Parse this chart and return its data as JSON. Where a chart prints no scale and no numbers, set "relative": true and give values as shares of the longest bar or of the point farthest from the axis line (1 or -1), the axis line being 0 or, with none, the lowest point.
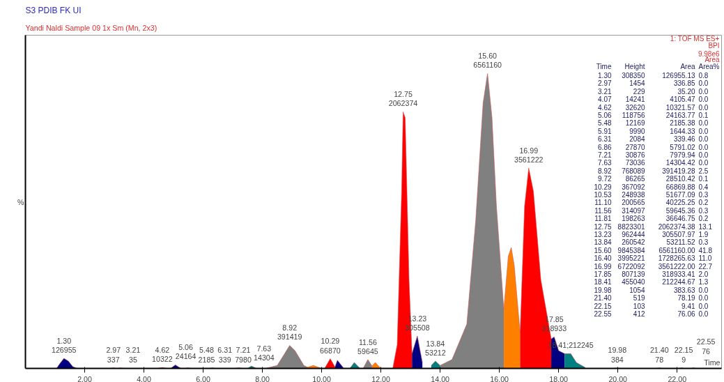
{
  "chart_data": {
    "type": "area",
    "title": "S3 PDIB FK UI",
    "subtitle": "Yandi Naldi Sample 09 1x Sm (Mn, 2x3)",
    "xlabel": "Time",
    "ylabel": "%",
    "relative": true,
    "grid": false,
    "xlim": [
      0,
      23.5
    ],
    "xticks": [
      {
        "value": 2,
        "label": "2.00"
      },
      {
        "value": 4,
        "label": "4.00"
      },
      {
        "value": 6,
        "label": "6.00"
      },
      {
        "value": 8,
        "label": "8.00"
      },
      {
        "value": 10,
        "label": "10.00"
      },
      {
        "value": 12,
        "label": "12.00"
      },
      {
        "value": 14,
        "label": "14.00"
      },
      {
        "value": 16,
        "label": "16.00"
      },
      {
        "value": 18,
        "label": "18.00"
      },
      {
        "value": 20,
        "label": "20.00"
      },
      {
        "value": 22,
        "label": "22.00"
      }
    ],
    "series": [
      {
        "color": "#000080",
        "x": [
          1.05,
          1.15,
          1.3,
          1.45,
          1.6,
          1.75
        ],
        "values": [
          0,
          0.015,
          0.034,
          0.025,
          0.006,
          0
        ]
      },
      {
        "color": "#000080",
        "x": [
          4.9,
          5.06,
          5.25
        ],
        "values": [
          0,
          0.012,
          0
        ]
      },
      {
        "color": "#008080",
        "x": [
          7.5,
          7.63,
          7.8
        ],
        "values": [
          0,
          0.008,
          0
        ]
      },
      {
        "color": "#808080",
        "x": [
          8.1,
          8.5,
          8.75,
          8.92,
          9.1,
          9.4,
          9.6
        ],
        "values": [
          0,
          0.01,
          0.05,
          0.078,
          0.06,
          0.01,
          0
        ]
      },
      {
        "color": "#ff8000",
        "x": [
          9.4,
          9.72,
          10.0
        ],
        "values": [
          0,
          0.01,
          0
        ]
      },
      {
        "color": "#ff0000",
        "x": [
          10.1,
          10.29,
          10.45
        ],
        "values": [
          0,
          0.033,
          0.005
        ]
      },
      {
        "color": "#000080",
        "x": [
          10.45,
          10.53,
          10.75
        ],
        "values": [
          0.005,
          0.028,
          0
        ]
      },
      {
        "color": "#008080",
        "x": [
          10.95,
          11.1,
          11.3
        ],
        "values": [
          0,
          0.02,
          0
        ]
      },
      {
        "color": "#808080",
        "x": [
          11.4,
          11.56,
          11.7
        ],
        "values": [
          0,
          0.03,
          0.008
        ]
      },
      {
        "color": "#ff8000",
        "x": [
          11.7,
          11.81,
          12.0
        ],
        "values": [
          0.008,
          0.02,
          0
        ]
      },
      {
        "color": "#ff0000",
        "x": [
          12.4,
          12.55,
          12.7,
          12.75,
          12.82,
          12.95,
          13.05
        ],
        "values": [
          0,
          0.08,
          0.6,
          0.87,
          0.85,
          0.3,
          0.05
        ]
      },
      {
        "color": "#000080",
        "x": [
          13.05,
          13.23,
          13.4
        ],
        "values": [
          0.05,
          0.11,
          0.02
        ]
      },
      {
        "color": "#008080",
        "x": [
          13.7,
          13.84,
          14.0
        ],
        "values": [
          0.01,
          0.025,
          0.01
        ]
      },
      {
        "color": "#808080",
        "x": [
          14.0,
          14.4,
          14.9,
          15.2,
          15.45,
          15.6,
          15.75,
          15.9,
          16.15
        ],
        "values": [
          0.01,
          0.03,
          0.15,
          0.5,
          0.9,
          1.0,
          0.85,
          0.55,
          0.2
        ]
      },
      {
        "color": "#ff8000",
        "x": [
          16.15,
          16.3,
          16.4,
          16.5,
          16.7
        ],
        "values": [
          0.2,
          0.38,
          0.41,
          0.35,
          0.12
        ]
      },
      {
        "color": "#ff0000",
        "x": [
          16.7,
          16.85,
          16.99,
          17.15,
          17.4,
          17.75
        ],
        "values": [
          0.12,
          0.55,
          0.68,
          0.6,
          0.3,
          0.1
        ]
      },
      {
        "color": "#000080",
        "x": [
          17.75,
          17.85,
          18.0,
          18.2
        ],
        "values": [
          0.1,
          0.107,
          0.06,
          0.05
        ]
      },
      {
        "color": "#008080",
        "x": [
          18.2,
          18.41,
          18.6,
          18.9
        ],
        "values": [
          0.05,
          0.05,
          0.02,
          0.003
        ]
      },
      {
        "color": "#008080",
        "x": [
          2.85,
          2.97,
          3.09
        ],
        "values": [
          0,
          0.002,
          0
        ]
      },
      {
        "color": "#808080",
        "x": [
          3.1,
          3.21,
          3.33
        ],
        "values": [
          0,
          0.002,
          0
        ]
      },
      {
        "color": "#ff0000",
        "x": [
          4.45,
          4.62,
          4.8
        ],
        "values": [
          0,
          0.003,
          0
        ]
      },
      {
        "color": "#008080",
        "x": [
          5.36,
          5.48,
          5.6
        ],
        "values": [
          0,
          0.002,
          0
        ]
      },
      {
        "color": "#ff8000",
        "x": [
          6.2,
          6.31,
          6.42
        ],
        "values": [
          0,
          0.002,
          0
        ]
      },
      {
        "color": "#000080",
        "x": [
          7.05,
          7.21,
          7.35
        ],
        "values": [
          0,
          0.002,
          0
        ]
      },
      {
        "color": "#808080",
        "x": [
          19.85,
          19.98,
          20.1
        ],
        "values": [
          0,
          0.002,
          0
        ]
      },
      {
        "color": "#ff8000",
        "x": [
          21.3,
          21.4,
          21.5
        ],
        "values": [
          0,
          0.002,
          0
        ]
      },
      {
        "color": "#ff0000",
        "x": [
          22.05,
          22.15,
          22.25
        ],
        "values": [
          0,
          0.002,
          0
        ]
      },
      {
        "color": "#000080",
        "x": [
          22.45,
          22.55,
          22.65
        ],
        "values": [
          0,
          0.002,
          0
        ]
      }
    ],
    "annotations": [
      {
        "text": "1.30\n126955",
        "x": 1.3,
        "y": 0.034
      },
      {
        "text": "2.97\n337",
        "x": 2.97,
        "y": 0.002
      },
      {
        "text": "3.21\n35",
        "x": 3.21,
        "y": 0.002
      },
      {
        "text": "4.62\n10322",
        "x": 4.62,
        "y": 0.003
      },
      {
        "text": "5.06\n24164",
        "x": 5.06,
        "y": 0.012
      },
      {
        "text": "5.48\n2185",
        "x": 5.48,
        "y": 0.002
      },
      {
        "text": "6.31\n339",
        "x": 6.31,
        "y": 0.002
      },
      {
        "text": "7.21\n7980",
        "x": 7.21,
        "y": 0.002
      },
      {
        "text": "7.63\n14304",
        "x": 7.63,
        "y": 0.008
      },
      {
        "text": "8.92\n391419",
        "x": 8.92,
        "y": 0.078
      },
      {
        "text": "10.29\n66870",
        "x": 10.29,
        "y": 0.033
      },
      {
        "text": "11.56\n59645",
        "x": 11.56,
        "y": 0.03
      },
      {
        "text": "12.75\n2062374",
        "x": 12.75,
        "y": 0.87
      },
      {
        "text": "13.23\n305508",
        "x": 13.23,
        "y": 0.11
      },
      {
        "text": "13.84\n53212",
        "x": 13.84,
        "y": 0.025
      },
      {
        "text": "15.60\n6561160",
        "x": 15.6,
        "y": 1.0
      },
      {
        "text": "16.99\n3561222",
        "x": 16.99,
        "y": 0.68
      },
      {
        "text": "17.85\n318933",
        "x": 17.85,
        "y": 0.107
      },
      {
        "text": "18.41;212245",
        "x": 18.41,
        "y": 0.05
      },
      {
        "text": "19.98\n384",
        "x": 19.98,
        "y": 0.002
      },
      {
        "text": "21.40\n78",
        "x": 21.4,
        "y": 0.002
      },
      {
        "text": "22.15\n9",
        "x": 22.15,
        "y": 0.002
      },
      {
        "text": "22.55\n76",
        "x": 22.55,
        "y": 0.002
      },
      "1: TOF MS ES+",
      "BPI",
      "9.98e6",
      "Area",
      "Time\tHeight\tArea\tArea%",
      "1.30\t308350\t126955.13\t0.8",
      "2.97\t1454\t336.85\t0.0",
      "3.21\t229\t35.20\t0.0",
      "4.07\t14241\t4105.47\t0.0",
      "4.62\t32620\t10321.57\t0.0",
      "5.06\t118756\t24163.77\t0.1",
      "5.48\t12169\t2185.38\t0.0",
      "5.91\t9990\t1644.33\t0.0",
      "6.31\t2084\t339.46\t0.0",
      "6.86\t27870\t5791.02\t0.0",
      "7.21\t30876\t7979.94\t0.0",
      "7.63\t73036\t14304.42\t0.0",
      "8.92\t768089\t391419.28\t2.5",
      "9.72\t86265\t28510.42\t0.1",
      "10.29\t367092\t66869.88\t0.4",
      "10.53\t248938\t51677.09\t0.3",
      "11.10\t200565\t40225.25\t0.2",
      "11.56\t314097\t59645.36\t0.3",
      "11.81\t198263\t36646.75\t0.2",
      "12.75\t8823301\t2062374.38\t13.1",
      "13.23\t962444\t305507.97\t1.9",
      "13.84\t260542\t53211.52\t0.3",
      "15.60\t9845384\t6561160.00\t41.8",
      "16.40\t3995221\t1728265.63\t11.0",
      "16.99\t6722092\t3561222.00\t22.7",
      "17.85\t807139\t318933.41\t2.0",
      "18.41\t455040\t212244.67\t1.3",
      "19.98\t1054\t383.63\t0.0",
      "21.40\t519\t78.19\t0.0",
      "22.15\t103\t9.41\t0.0",
      "22.55\t412\t76.06\t0.0"
    ]
  }
}
